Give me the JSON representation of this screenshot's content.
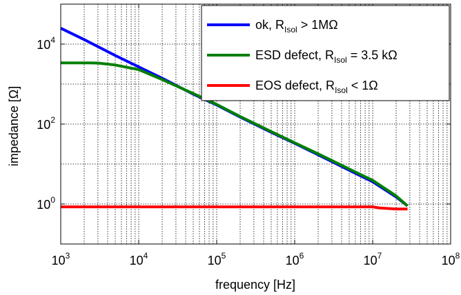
{
  "chart_data": {
    "type": "line",
    "title": "",
    "xlabel": "frequency [Hz]",
    "ylabel": "impedance [Ω]",
    "xscale": "log",
    "yscale": "log",
    "xlim": [
      1000,
      100000000
    ],
    "ylim": [
      0.1,
      100000
    ],
    "grid": true,
    "legend_position": "top-right",
    "x_ticks": [
      {
        "base": "10",
        "exp": "3",
        "value": 1000
      },
      {
        "base": "10",
        "exp": "4",
        "value": 10000
      },
      {
        "base": "10",
        "exp": "5",
        "value": 100000
      },
      {
        "base": "10",
        "exp": "6",
        "value": 1000000
      },
      {
        "base": "10",
        "exp": "7",
        "value": 10000000
      },
      {
        "base": "10",
        "exp": "8",
        "value": 100000000
      }
    ],
    "y_ticks": [
      {
        "base": "10",
        "exp": "0",
        "value": 1
      },
      {
        "base": "10",
        "exp": "2",
        "value": 100
      },
      {
        "base": "10",
        "exp": "4",
        "value": 10000
      }
    ],
    "series": [
      {
        "name": "ok, R_Isol > 1MΩ",
        "legend": {
          "pre": "ok, R",
          "sub": "Isol",
          "post": " > 1MΩ"
        },
        "color": "#0000ff",
        "x": [
          1000,
          2000,
          5000,
          10000,
          20000,
          50000,
          100000,
          200000,
          500000,
          1000000,
          2000000,
          5000000,
          10000000,
          20000000,
          28000000
        ],
        "y": [
          25000,
          13000,
          5200,
          2700,
          1400,
          560,
          300,
          150,
          62,
          33,
          17,
          7,
          3.6,
          1.5,
          0.9
        ]
      },
      {
        "name": "ESD defect, R_Isol = 3.5 kΩ",
        "legend": {
          "pre": "ESD defect, R",
          "sub": "Isol",
          "post": " = 3.5 kΩ"
        },
        "color": "#008000",
        "x": [
          1000,
          2000,
          3000,
          5000,
          10000,
          20000,
          50000,
          100000,
          200000,
          500000,
          1000000,
          2000000,
          5000000,
          10000000,
          20000000,
          28000000
        ],
        "y": [
          3400,
          3400,
          3350,
          3000,
          2300,
          1300,
          580,
          310,
          155,
          65,
          34,
          18,
          7.5,
          3.9,
          1.6,
          0.9
        ]
      },
      {
        "name": "EOS defect, R_Isol < 1Ω",
        "legend": {
          "pre": "EOS defect, R",
          "sub": "Isol",
          "post": " < 1Ω"
        },
        "color": "#ff0000",
        "x": [
          1000,
          10000,
          100000,
          1000000,
          10000000,
          12000000,
          20000000,
          28000000
        ],
        "y": [
          0.85,
          0.85,
          0.85,
          0.85,
          0.85,
          0.8,
          0.75,
          0.75
        ]
      }
    ]
  }
}
